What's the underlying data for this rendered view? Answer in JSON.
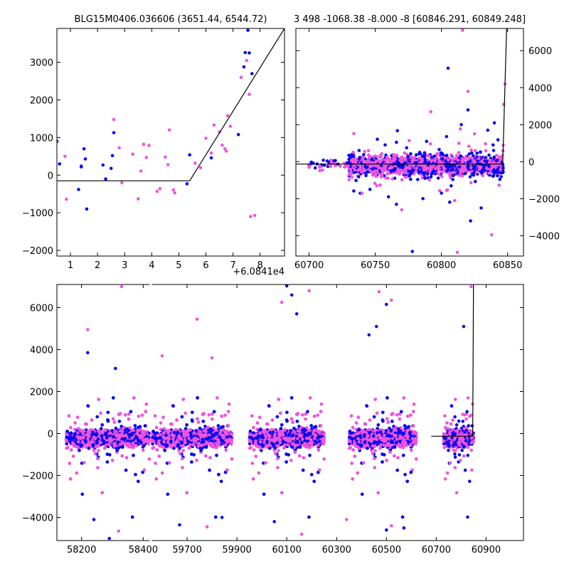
{
  "figure": {
    "title_left": "BLG15M0406.036606 (3651.44, 6544.72)",
    "title_right": "3 498 -1068.38 -8.000 -8 [60846.291, 60849.248]",
    "offset_label": "+6.0841e4"
  },
  "colors": {
    "series_a": "#0a0aee",
    "series_b": "#ee55dd",
    "model": "#000000"
  },
  "chart_data": [
    {
      "type": "scatter",
      "panel": "top-left",
      "x": {
        "lim": [
          0.5,
          8.9
        ],
        "ticks": [
          1,
          2,
          3,
          4,
          5,
          6,
          7,
          8
        ],
        "tick_labels": [
          "1",
          "2",
          "3",
          "4",
          "5",
          "6",
          "7",
          "8"
        ],
        "offset_text": "+6.0841e4"
      },
      "y": {
        "lim": [
          -2150,
          3900
        ],
        "ticks": [
          -2000,
          -1000,
          0,
          1000,
          2000,
          3000
        ],
        "tick_labels": [
          "−2000",
          "−1000",
          "0",
          "1000",
          "2000",
          "3000"
        ]
      },
      "model_line": [
        [
          0.5,
          -150
        ],
        [
          5.4,
          -150
        ],
        [
          8.9,
          3900
        ]
      ],
      "series": [
        {
          "color_key": "series_a",
          "points": [
            [
              0.5,
              900
            ],
            [
              0.6,
              300
            ],
            [
              1.3,
              -380
            ],
            [
              1.4,
              220
            ],
            [
              1.4,
              240
            ],
            [
              1.5,
              700
            ],
            [
              1.55,
              430
            ],
            [
              1.6,
              -900
            ],
            [
              2.2,
              270
            ],
            [
              2.3,
              -100
            ],
            [
              2.5,
              180
            ],
            [
              2.55,
              520
            ],
            [
              2.6,
              1130
            ],
            [
              5.3,
              -230
            ],
            [
              5.4,
              540
            ],
            [
              6.2,
              460
            ],
            [
              7.2,
              1080
            ],
            [
              7.4,
              2880
            ],
            [
              7.45,
              3260
            ],
            [
              7.55,
              3850
            ],
            [
              7.6,
              3250
            ],
            [
              7.7,
              2700
            ]
          ]
        },
        {
          "color_key": "series_b",
          "points": [
            [
              0.8,
              500
            ],
            [
              0.85,
              -640
            ],
            [
              2.6,
              1480
            ],
            [
              2.8,
              730
            ],
            [
              2.9,
              -200
            ],
            [
              3.3,
              560
            ],
            [
              3.5,
              -630
            ],
            [
              3.6,
              110
            ],
            [
              3.7,
              820
            ],
            [
              3.8,
              470
            ],
            [
              3.9,
              790
            ],
            [
              4.2,
              -430
            ],
            [
              4.3,
              -360
            ],
            [
              4.5,
              480
            ],
            [
              4.6,
              280
            ],
            [
              4.65,
              1200
            ],
            [
              4.8,
              -390
            ],
            [
              4.85,
              -470
            ],
            [
              5.6,
              320
            ],
            [
              5.8,
              200
            ],
            [
              6.0,
              980
            ],
            [
              6.2,
              590
            ],
            [
              6.3,
              1330
            ],
            [
              6.5,
              1150
            ],
            [
              6.6,
              800
            ],
            [
              6.7,
              700
            ],
            [
              6.75,
              640
            ],
            [
              6.8,
              1580
            ],
            [
              6.9,
              1300
            ],
            [
              7.3,
              2600
            ],
            [
              7.5,
              3050
            ],
            [
              7.6,
              2150
            ],
            [
              7.65,
              -1100
            ],
            [
              7.8,
              -1070
            ]
          ]
        }
      ]
    },
    {
      "type": "scatter",
      "panel": "top-right",
      "x": {
        "lim": [
          60690,
          60862
        ],
        "ticks": [
          60700,
          60750,
          60800,
          60850
        ],
        "tick_labels": [
          "60700",
          "60750",
          "60800",
          "60850"
        ]
      },
      "y": {
        "lim": [
          -5100,
          7200
        ],
        "ticks": [
          -4000,
          -2000,
          0,
          2000,
          4000,
          6000
        ],
        "tick_labels": [
          "−4000",
          "−2000",
          "0",
          "2000",
          "4000",
          "6000"
        ]
      },
      "model_line": [
        [
          60690,
          -130
        ],
        [
          60846.3,
          -130
        ],
        [
          60849.25,
          7200
        ]
      ],
      "band": {
        "x_range": [
          60730,
          60847
        ],
        "y_center": -200,
        "y_spread": 900
      },
      "series": [
        {
          "color_key": "series_a",
          "points": [
            [
              60805,
              5050
            ],
            [
              60778,
              -4850
            ],
            [
              60822,
              -3200
            ],
            [
              60766,
              -2300
            ],
            [
              60786,
              -2000
            ],
            [
              60815,
              2000
            ],
            [
              60835,
              1700
            ],
            [
              60840,
              2100
            ],
            [
              60820,
              2800
            ],
            [
              60746,
              -1500
            ],
            [
              60800,
              -1700
            ],
            [
              60760,
              -1900
            ],
            [
              60830,
              -2500
            ]
          ]
        },
        {
          "color_key": "series_b",
          "points": [
            [
              60820,
              3800
            ],
            [
              60838,
              -3950
            ],
            [
              60812,
              -4900
            ],
            [
              60792,
              2700
            ],
            [
              60740,
              -1700
            ],
            [
              60770,
              -2600
            ],
            [
              60810,
              -2100
            ],
            [
              60825,
              1500
            ],
            [
              60848,
              4200
            ],
            [
              60847,
              3100
            ],
            [
              60816,
              7100
            ],
            [
              60700,
              -300
            ]
          ]
        }
      ]
    },
    {
      "type": "scatter",
      "panel": "bottom",
      "x": {
        "lim": [
          58120,
          61050
        ],
        "ticks": [
          58200,
          58400,
          59700,
          59900,
          60100,
          60300,
          60500,
          60700,
          60900
        ],
        "tick_labels": [
          "58200",
          "58400",
          "59700",
          "59900",
          "60100",
          "60300",
          "60500",
          "60700",
          "60900"
        ],
        "broken_after": 58420,
        "resume_at": 59560
      },
      "y": {
        "lim": [
          -5100,
          7100
        ],
        "ticks": [
          -4000,
          -2000,
          0,
          2000,
          4000,
          6000
        ],
        "tick_labels": [
          "−4000",
          "−2000",
          "0",
          "2000",
          "4000",
          "6000"
        ]
      },
      "model_line": [
        [
          60680,
          -130
        ],
        [
          60846.3,
          -130
        ],
        [
          60849.25,
          7100
        ]
      ],
      "seasons": [
        [
          58150,
          58420
        ],
        [
          59560,
          59880
        ],
        [
          59950,
          60250
        ],
        [
          60350,
          60620
        ],
        [
          60730,
          60850
        ]
      ],
      "series": [
        {
          "color_key": "series_a",
          "points": [
            [
              58220,
              3850
            ],
            [
              58310,
              3100
            ],
            [
              58290,
              -5000
            ],
            [
              60100,
              7050
            ],
            [
              60120,
              6600
            ],
            [
              60140,
              5700
            ],
            [
              60430,
              4700
            ],
            [
              60500,
              6150
            ],
            [
              60460,
              5100
            ],
            [
              59670,
              -4350
            ],
            [
              60050,
              -4200
            ],
            [
              60500,
              -4600
            ],
            [
              60570,
              -4500
            ],
            [
              60810,
              5100
            ],
            [
              58240,
              -4100
            ],
            [
              59840,
              -4000
            ]
          ]
        },
        {
          "color_key": "series_b",
          "points": [
            [
              58220,
              4950
            ],
            [
              58330,
              7000
            ],
            [
              59740,
              5450
            ],
            [
              59800,
              3600
            ],
            [
              59600,
              3700
            ],
            [
              60080,
              6250
            ],
            [
              60190,
              6800
            ],
            [
              60470,
              6750
            ],
            [
              60520,
              6350
            ],
            [
              60840,
              7000
            ],
            [
              59780,
              -4450
            ],
            [
              60160,
              -4800
            ],
            [
              60340,
              -4100
            ],
            [
              58320,
              -4650
            ],
            [
              60520,
              -4400
            ]
          ]
        }
      ]
    }
  ]
}
